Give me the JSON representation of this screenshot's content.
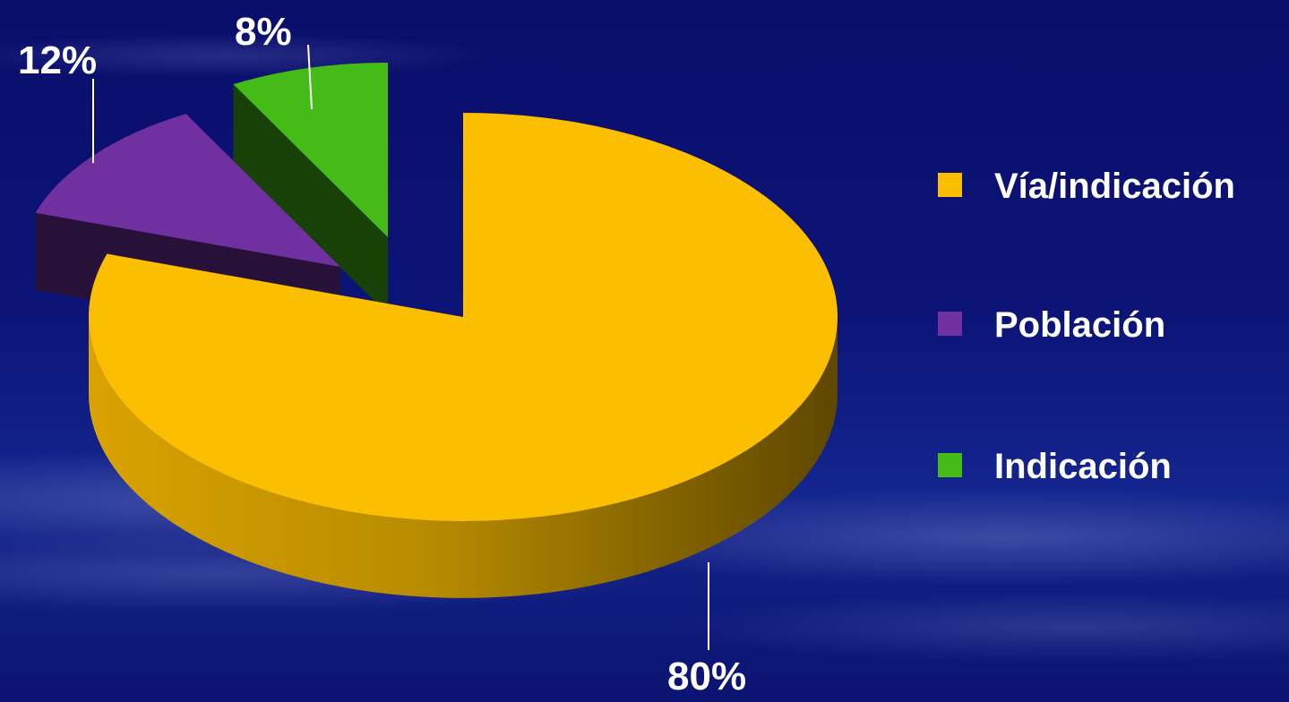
{
  "chart_data": {
    "type": "pie",
    "title": "",
    "categories": [
      "Vía/indicación",
      "Población",
      "Indicación"
    ],
    "values": [
      80,
      12,
      8
    ],
    "value_labels": [
      "80%",
      "12%",
      "8%"
    ],
    "colors": [
      "#FCBE00",
      "#7030A0",
      "#44BB17"
    ],
    "legend_position": "right",
    "style": "3d-exploded"
  }
}
